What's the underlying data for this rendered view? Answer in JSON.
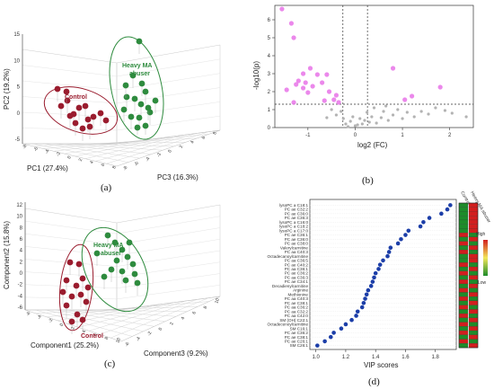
{
  "panel_labels": [
    "(a)",
    "(b)",
    "(c)",
    "(d)"
  ],
  "colors": {
    "control": "#9a1c2e",
    "abuser": "#2e8b3e",
    "sig_point": "#e873e8",
    "nonsig_point": "#b3b3b3",
    "vip_point": "#1c3ea8",
    "heat_high": "#d21e1e",
    "heat_low": "#1e8c2a"
  },
  "chart_data": [
    {
      "type": "scatter",
      "panel": "a",
      "x_axis_label": "PC1 (27.4%)",
      "y_axis_label": "PC2 (19.2%)",
      "z_axis_label": "PC3 (16.3%)",
      "y_ticks": [
        "15",
        "10",
        "5",
        "0",
        "-5"
      ],
      "x_ticks": [
        "-8",
        "-6",
        "-4",
        "-2",
        "0",
        "2",
        "4",
        "6",
        "8"
      ],
      "z_ticks": [
        "-8",
        "-6",
        "-4",
        "-2",
        "0",
        "2",
        "4",
        "6",
        "8"
      ],
      "group_labels": [
        "Control",
        "Heavy MA abuser"
      ]
    },
    {
      "type": "scatter",
      "panel": "b",
      "xlabel": "log2 (FC)",
      "ylabel": "-log10(p)",
      "x_ticks": [
        "-1",
        "0",
        "1",
        "2"
      ],
      "y_ticks": [
        "0",
        "1",
        "2",
        "3",
        "4",
        "5",
        "6"
      ],
      "xlim": [
        -1.7,
        2.5
      ],
      "ylim": [
        0,
        6.8
      ],
      "thresholds": {
        "log2fc_low": -0.26,
        "log2fc_high": 0.26,
        "neglog10p": 1.3
      },
      "significant": [
        {
          "x": -1.55,
          "y": 6.6
        },
        {
          "x": -1.35,
          "y": 5.8
        },
        {
          "x": -1.3,
          "y": 5.0
        },
        {
          "x": -1.1,
          "y": 3.0
        },
        {
          "x": -0.95,
          "y": 3.3
        },
        {
          "x": -0.8,
          "y": 2.95
        },
        {
          "x": -0.6,
          "y": 2.95
        },
        {
          "x": -1.2,
          "y": 2.6
        },
        {
          "x": -1.05,
          "y": 2.5
        },
        {
          "x": -1.25,
          "y": 2.4
        },
        {
          "x": -1.1,
          "y": 2.2
        },
        {
          "x": -0.9,
          "y": 2.3
        },
        {
          "x": -0.7,
          "y": 2.5
        },
        {
          "x": -0.55,
          "y": 2.0
        },
        {
          "x": -1.45,
          "y": 2.1
        },
        {
          "x": -0.4,
          "y": 1.8
        },
        {
          "x": -0.45,
          "y": 1.55
        },
        {
          "x": -0.65,
          "y": 1.5
        },
        {
          "x": -1.0,
          "y": 1.95
        },
        {
          "x": -1.3,
          "y": 1.4
        },
        {
          "x": -0.35,
          "y": 1.4
        },
        {
          "x": 0.8,
          "y": 3.3
        },
        {
          "x": 1.8,
          "y": 2.25
        },
        {
          "x": 1.2,
          "y": 1.75
        },
        {
          "x": 1.05,
          "y": 1.55
        }
      ],
      "nonsignificant": [
        {
          "x": -0.2,
          "y": 0.2
        },
        {
          "x": -0.1,
          "y": 0.35
        },
        {
          "x": 0.0,
          "y": 0.1
        },
        {
          "x": 0.1,
          "y": 0.5
        },
        {
          "x": 0.15,
          "y": 0.2
        },
        {
          "x": -0.05,
          "y": 0.6
        },
        {
          "x": 0.05,
          "y": 0.15
        },
        {
          "x": -0.15,
          "y": 0.05
        },
        {
          "x": 0.2,
          "y": 0.4
        },
        {
          "x": 0.3,
          "y": 0.3
        },
        {
          "x": 0.35,
          "y": 0.6
        },
        {
          "x": 0.45,
          "y": 0.25
        },
        {
          "x": 0.55,
          "y": 0.55
        },
        {
          "x": 0.6,
          "y": 0.9
        },
        {
          "x": 0.7,
          "y": 0.4
        },
        {
          "x": 0.8,
          "y": 0.7
        },
        {
          "x": 0.9,
          "y": 1.0
        },
        {
          "x": 1.0,
          "y": 0.5
        },
        {
          "x": 1.1,
          "y": 0.85
        },
        {
          "x": 1.25,
          "y": 0.6
        },
        {
          "x": 1.4,
          "y": 0.9
        },
        {
          "x": 1.55,
          "y": 0.75
        },
        {
          "x": 1.7,
          "y": 1.1
        },
        {
          "x": 1.9,
          "y": 0.95
        },
        {
          "x": 2.05,
          "y": 0.8
        },
        {
          "x": 2.35,
          "y": 0.6
        },
        {
          "x": -0.3,
          "y": 0.9
        },
        {
          "x": -0.4,
          "y": 0.7
        },
        {
          "x": -0.5,
          "y": 1.0
        },
        {
          "x": -0.25,
          "y": 0.5
        },
        {
          "x": 0.25,
          "y": 0.85
        },
        {
          "x": 0.4,
          "y": 1.1
        },
        {
          "x": -0.6,
          "y": 0.55
        },
        {
          "x": 0.65,
          "y": 1.2
        }
      ]
    },
    {
      "type": "scatter",
      "panel": "c",
      "x_axis_label": "Component1 (25.2%)",
      "y_axis_label": "Component2 (15.8%)",
      "z_axis_label": "Component3 (9.2%)",
      "y_ticks": [
        "12",
        "10",
        "8",
        "6",
        "4",
        "2",
        "0",
        "-2",
        "-4",
        "-6"
      ],
      "x_ticks": [
        "-6",
        "-4",
        "-2",
        "0",
        "2",
        "4",
        "6",
        "8",
        "10"
      ],
      "z_ticks": [
        "-6",
        "-4",
        "-2",
        "0",
        "2",
        "4",
        "6",
        "8",
        "10"
      ],
      "group_labels": [
        "Control",
        "Heavy MA abuser"
      ]
    },
    {
      "type": "scatter",
      "panel": "d",
      "xlabel": "VIP scores",
      "x_ticks": [
        "1.0",
        "1.2",
        "1.4",
        "1.6",
        "1.8"
      ],
      "xlim": [
        0.96,
        1.94
      ],
      "heatmap_column_labels": [
        "Control",
        "Heavy MA abuser"
      ],
      "heatmap_legend": {
        "high": "High",
        "low": "Low"
      },
      "categories": [
        "lysoPC a C18:1",
        "PC ae C32:2",
        "PC ae C36:0",
        "PC ae C36:3",
        "lysoPC a C16:0",
        "lysoPC a C18:2",
        "lysoPC a C17:0",
        "PC ae C36:1",
        "PC ae C36:0",
        "PC ae C38:0",
        "Valerylcarnitine",
        "PC aa C40:3",
        "Octadecanoylcarnitine",
        "PC aa C36:5",
        "PC ae C40:2",
        "PC aa C36:1",
        "PC ae C36:2",
        "PC aa C36:3",
        "PC ae C34:1",
        "Decadienylcarnitine",
        "Arginine",
        "Methionine",
        "PC aa C40:3",
        "PC ae C38:1",
        "PC aa C36:2",
        "PC aa C32:2",
        "PC aa C42:0",
        "SM (OH) C22:1",
        "Octadecenoylcarnitine",
        "SM C16:1",
        "PC ae C36:2",
        "PC ae C38:1",
        "PC ae C26:1",
        "SM C26:1"
      ],
      "values": [
        1.9,
        1.88,
        1.84,
        1.76,
        1.72,
        1.7,
        1.62,
        1.6,
        1.57,
        1.55,
        1.5,
        1.49,
        1.48,
        1.45,
        1.43,
        1.42,
        1.4,
        1.39,
        1.38,
        1.37,
        1.35,
        1.34,
        1.33,
        1.32,
        1.31,
        1.28,
        1.27,
        1.24,
        1.2,
        1.17,
        1.12,
        1.1,
        1.06,
        1.01
      ],
      "heatmap": [
        [
          "L",
          "H"
        ],
        [
          "L",
          "H"
        ],
        [
          "L",
          "H"
        ],
        [
          "L",
          "H"
        ],
        [
          "L",
          "H"
        ],
        [
          "L",
          "H"
        ],
        [
          "L",
          "H"
        ],
        [
          "H",
          "L"
        ],
        [
          "L",
          "H"
        ],
        [
          "H",
          "L"
        ],
        [
          "L",
          "H"
        ],
        [
          "H",
          "L"
        ],
        [
          "L",
          "H"
        ],
        [
          "L",
          "H"
        ],
        [
          "H",
          "L"
        ],
        [
          "L",
          "H"
        ],
        [
          "H",
          "L"
        ],
        [
          "L",
          "H"
        ],
        [
          "H",
          "L"
        ],
        [
          "L",
          "H"
        ],
        [
          "H",
          "L"
        ],
        [
          "L",
          "H"
        ],
        [
          "H",
          "L"
        ],
        [
          "L",
          "H"
        ],
        [
          "H",
          "L"
        ],
        [
          "L",
          "H"
        ],
        [
          "H",
          "L"
        ],
        [
          "L",
          "H"
        ],
        [
          "H",
          "L"
        ],
        [
          "L",
          "H"
        ],
        [
          "H",
          "L"
        ],
        [
          "L",
          "H"
        ],
        [
          "H",
          "L"
        ],
        [
          "L",
          "H"
        ]
      ]
    }
  ]
}
